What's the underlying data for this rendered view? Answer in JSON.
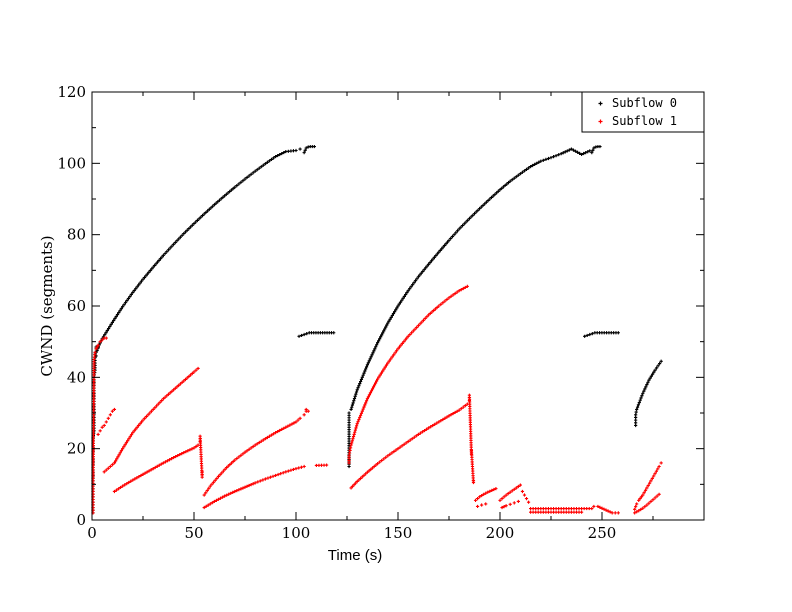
{
  "chart_data": {
    "type": "scatter",
    "title": "",
    "xlabel": "Time (s)",
    "ylabel": "CWND (segments)",
    "xlim": [
      0,
      300
    ],
    "ylim": [
      0,
      120
    ],
    "xticks": [
      0,
      50,
      100,
      150,
      200,
      250
    ],
    "yticks": [
      0,
      20,
      40,
      60,
      80,
      100,
      120
    ],
    "xtick_labels": [
      "0",
      "50",
      "100",
      "150",
      "200",
      "250"
    ],
    "ytick_labels": [
      "0",
      "20",
      "40",
      "60",
      "80",
      "100",
      "120"
    ],
    "grid": false,
    "legend_position": "top-right",
    "series": [
      {
        "name": "Subflow 0",
        "color": "#000000",
        "segments": [
          {
            "x": [
              0.5,
              0.5,
              0.5,
              0.5,
              0.5,
              0.5,
              0.5,
              0.5,
              1,
              1,
              1,
              1,
              1,
              1,
              1.5,
              1.5,
              1.5,
              1.5,
              1.5,
              2,
              2,
              2,
              2,
              2.5,
              2.5,
              3,
              3
            ],
            "y": [
              2,
              5,
              8,
              11,
              14,
              17,
              20,
              23,
              25,
              28,
              31,
              34,
              37,
              40,
              42,
              44,
              45.5,
              46.5,
              47,
              46,
              47,
              48,
              48.5,
              47.5,
              48.3,
              48.2,
              48.6
            ]
          },
          {
            "x": [
              3,
              5,
              10,
              15,
              20,
              25,
              30,
              35,
              40,
              45,
              50,
              55,
              60,
              65,
              70,
              75,
              80,
              85,
              90,
              95,
              100,
              102
            ],
            "y": [
              48.5,
              50.8,
              55.4,
              59.8,
              63.8,
              67.5,
              70.9,
              74.2,
              77.3,
              80.3,
              83.1,
              85.8,
              88.4,
              90.9,
              93.3,
              95.6,
              97.8,
              99.9,
              101.9,
              103.3,
              103.6,
              104
            ]
          },
          {
            "x": [
              104,
              105,
              106,
              107,
              108,
              109
            ],
            "y": [
              103,
              104.3,
              104.6,
              104.7,
              104.7,
              104.7
            ]
          },
          {
            "x": [
              101.5,
              106.5,
              118.5
            ],
            "y": [
              51.5,
              52.5,
              52.5
            ]
          },
          {
            "x": [
              126,
              126,
              126,
              126,
              127,
              130,
              135,
              140,
              145,
              150,
              155,
              160,
              165,
              170,
              175,
              180,
              185,
              190,
              195,
              200,
              205,
              210,
              215,
              220,
              225,
              230,
              235,
              240,
              244
            ],
            "y": [
              15,
              26,
              28,
              30,
              31,
              36.5,
              43.5,
              49.7,
              55.2,
              60,
              64.3,
              68.2,
              71.7,
              75.1,
              78.4,
              81.6,
              84.5,
              87.3,
              90,
              92.6,
              95,
              97.1,
              99.1,
              100.6,
              101.6,
              102.7,
              104,
              102.5,
              103.5
            ]
          },
          {
            "x": [
              245,
              246,
              247,
              248,
              249
            ],
            "y": [
              103,
              104.3,
              104.6,
              104.7,
              104.7
            ]
          },
          {
            "x": [
              241.5,
              246.5,
              258
            ],
            "y": [
              51.5,
              52.5,
              52.5
            ]
          },
          {
            "x": [
              266.5,
              266.5,
              267,
              270,
              273,
              276,
              279
            ],
            "y": [
              26.5,
              29.5,
              31,
              35.5,
              39.2,
              42,
              44.5
            ]
          }
        ]
      },
      {
        "name": "Subflow 1",
        "color": "#ff0000",
        "segments": [
          {
            "x": [
              0.5,
              0.5,
              0.5,
              0.5,
              1,
              1.5,
              2,
              2.5,
              3,
              4,
              5,
              6,
              7
            ],
            "y": [
              2,
              5,
              8,
              11,
              45,
              47,
              48,
              48.5,
              49,
              50,
              50.5,
              51,
              51
            ]
          },
          {
            "x": [
              3,
              4,
              5,
              6,
              7,
              8,
              9,
              10,
              11
            ],
            "y": [
              24,
              25,
              26,
              26.5,
              27.5,
              28.5,
              29.5,
              30.5,
              31
            ]
          },
          {
            "x": [
              6,
              7,
              8,
              9,
              10,
              11
            ],
            "y": [
              13.5,
              14,
              14.5,
              15,
              15.5,
              16
            ]
          },
          {
            "x": [
              11,
              15,
              20,
              25,
              30,
              35,
              40,
              45,
              50,
              52
            ],
            "y": [
              16,
              20,
              24.5,
              28,
              31,
              34,
              36.5,
              39,
              41.5,
              42.5
            ]
          },
          {
            "x": [
              11,
              15,
              20,
              25,
              30,
              35,
              40,
              45,
              50,
              52
            ],
            "y": [
              8,
              9.5,
              11.2,
              12.8,
              14.4,
              16,
              17.5,
              18.9,
              20.2,
              21
            ]
          },
          {
            "x": [
              53,
              53,
              54,
              54
            ],
            "y": [
              22,
              23.5,
              12,
              13.5
            ]
          },
          {
            "x": [
              55,
              58,
              62,
              66,
              70,
              75,
              80,
              85,
              90,
              95,
              100,
              102
            ],
            "y": [
              7,
              9.5,
              12.2,
              14.7,
              16.8,
              19,
              21,
              22.8,
              24.5,
              26,
              27.5,
              28.5
            ]
          },
          {
            "x": [
              55,
              60,
              65,
              70,
              75,
              80,
              85,
              90,
              95,
              100,
              104
            ],
            "y": [
              3.5,
              5.2,
              6.7,
              8,
              9.2,
              10.4,
              11.5,
              12.5,
              13.5,
              14.4,
              15
            ]
          },
          {
            "x": [
              104,
              105,
              105,
              106
            ],
            "y": [
              29.5,
              30.5,
              31,
              30.5
            ]
          },
          {
            "x": [
              110,
              115
            ],
            "y": [
              15.3,
              15.4
            ]
          },
          {
            "x": [
              126,
              126,
              127,
              130,
              135,
              140,
              145,
              150,
              155,
              160,
              165,
              170,
              175,
              180,
              184
            ],
            "y": [
              16,
              18,
              21,
              27,
              34,
              39.5,
              44,
              48,
              51.5,
              54.5,
              57.5,
              60,
              62.3,
              64.3,
              65.5
            ]
          },
          {
            "x": [
              127,
              130,
              135,
              140,
              145,
              150,
              155,
              160,
              165,
              170,
              175,
              180,
              184
            ],
            "y": [
              9,
              10.8,
              13.4,
              15.8,
              18,
              20,
              22,
              24,
              25.8,
              27.5,
              29.2,
              30.8,
              32.5
            ]
          },
          {
            "x": [
              185,
              185,
              186,
              186,
              187,
              187
            ],
            "y": [
              33.5,
              35,
              18.5,
              19.5,
              10.5,
              11
            ]
          },
          {
            "x": [
              188,
              190,
              192,
              194,
              196,
              198
            ],
            "y": [
              5.5,
              6.5,
              7.2,
              7.8,
              8.3,
              8.8
            ]
          },
          {
            "x": [
              189,
              191,
              193
            ],
            "y": [
              3.8,
              4.2,
              4.5
            ]
          },
          {
            "x": [
              200,
              202,
              204,
              206,
              208,
              210
            ],
            "y": [
              5.5,
              6.5,
              7.4,
              8.2,
              9,
              9.8
            ]
          },
          {
            "x": [
              201,
              203,
              205,
              207,
              209
            ],
            "y": [
              3.5,
              4,
              4.4,
              4.8,
              5.2
            ]
          },
          {
            "x": [
              211,
              212,
              213,
              214
            ],
            "y": [
              8,
              7,
              6,
              5
            ]
          },
          {
            "x": [
              215,
              220,
              225,
              230,
              235,
              240,
              245
            ],
            "y": [
              3.2,
              3.2,
              3.2,
              3.2,
              3.2,
              3.2,
              3.2
            ]
          },
          {
            "x": [
              215,
              220,
              225,
              230,
              235,
              240
            ],
            "y": [
              2.2,
              2.2,
              2.2,
              2.2,
              2.2,
              2.2
            ]
          },
          {
            "x": [
              246,
              248,
              255,
              258
            ],
            "y": [
              3.8,
              3.8,
              2,
              2
            ]
          },
          {
            "x": [
              266,
              267,
              268,
              270,
              272,
              274,
              276,
              278,
              279
            ],
            "y": [
              3,
              4.5,
              5.5,
              7,
              9,
              11,
              13,
              15,
              16
            ]
          },
          {
            "x": [
              266,
              268,
              270,
              272,
              274,
              276,
              278
            ],
            "y": [
              2,
              2.6,
              3.3,
              4.2,
              5.2,
              6.2,
              7.2
            ]
          }
        ]
      }
    ]
  }
}
